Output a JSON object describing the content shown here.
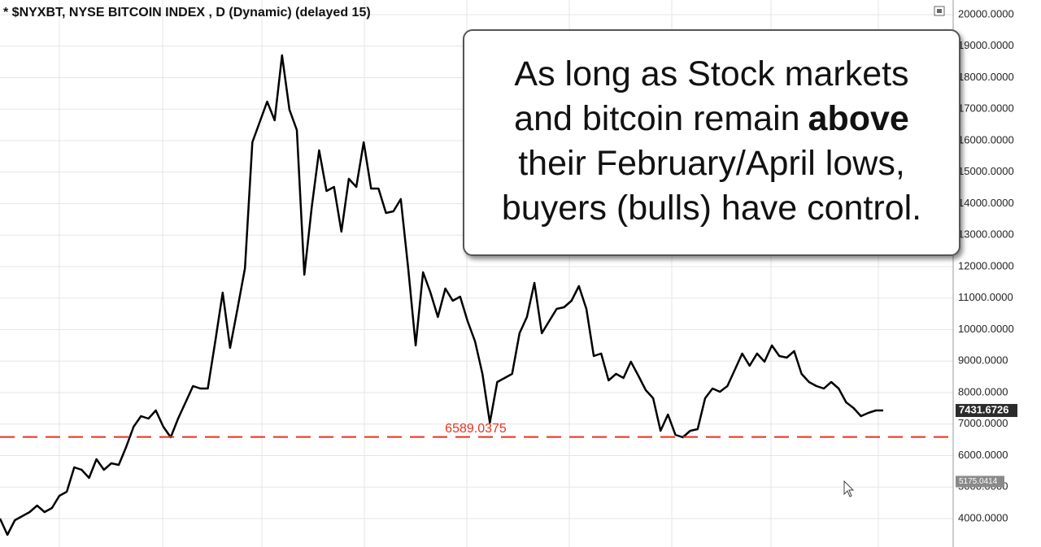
{
  "chart_data": {
    "type": "line",
    "title": "* $NYXBT, NYSE BITCOIN INDEX , D (Dynamic) (delayed 15)",
    "color": "#000000",
    "values": [
      4000,
      3484,
      3948,
      4077,
      4206,
      4413,
      4206,
      4335,
      4723,
      4852,
      5626,
      5548,
      5290,
      5884,
      5548,
      5755,
      5703,
      6271,
      6916,
      7252,
      7174,
      7432,
      6916,
      6581,
      7174,
      7690,
      8206,
      8129,
      8129,
      9626,
      11174,
      9419,
      10658,
      11948,
      15948,
      16594,
      17239,
      16645,
      18710,
      16981,
      16336,
      11742,
      13884,
      15690,
      14400,
      14529,
      13110,
      14787,
      14529,
      15948,
      14477,
      14477,
      13703,
      13755,
      14142,
      11948,
      9497,
      11819,
      11174,
      10400,
      11303,
      10916,
      11045,
      10271,
      9626,
      8594,
      7045,
      8336,
      8465,
      8594,
      9884,
      10400,
      11484,
      9884,
      10271,
      10658,
      10709,
      10916,
      11381,
      10658,
      9161,
      9239,
      8387,
      8594,
      8465,
      8981,
      8542,
      8077,
      7819,
      6787,
      7303,
      6658,
      6581,
      6787,
      6839,
      7819,
      8129,
      8026,
      8206,
      8723,
      9239,
      8852,
      9239,
      8981,
      9497,
      9161,
      9110,
      9316,
      8594,
      8336,
      8206,
      8129,
      8336,
      8129,
      7690,
      7510,
      7252,
      7355,
      7432,
      7431.6726
    ],
    "ylim": [
      3097,
      20465
    ],
    "yticks": [
      {
        "value": 20000,
        "label": "20000.0000"
      },
      {
        "value": 19000,
        "label": "19000.0000"
      },
      {
        "value": 18000,
        "label": "18000.0000"
      },
      {
        "value": 17000,
        "label": "17000.0000"
      },
      {
        "value": 16000,
        "label": "16000.0000"
      },
      {
        "value": 15000,
        "label": "15000.0000"
      },
      {
        "value": 14000,
        "label": "14000.0000"
      },
      {
        "value": 13000,
        "label": "13000.0000"
      },
      {
        "value": 12000,
        "label": "12000.0000"
      },
      {
        "value": 11000,
        "label": "11000.0000"
      },
      {
        "value": 10000,
        "label": "10000.0000"
      },
      {
        "value": 9000,
        "label": "9000.0000"
      },
      {
        "value": 8000,
        "label": "8000.0000"
      },
      {
        "value": 7000,
        "label": "7000.0000"
      },
      {
        "value": 6000,
        "label": "6000.0000"
      },
      {
        "value": 5000,
        "label": "5000.0000"
      },
      {
        "value": 4000,
        "label": "4000.0000"
      }
    ],
    "grid": true,
    "reference_line": {
      "value": 6589.0375,
      "color": "#e8321e"
    },
    "last_price": 7431.6726,
    "marker_price": 5175.0414
  },
  "callout": {
    "lines": [
      "As long as Stock markets",
      "and bitcoin remain",
      "their February/April lows,",
      "buyers (bulls) have control."
    ],
    "emphasis": "above"
  }
}
